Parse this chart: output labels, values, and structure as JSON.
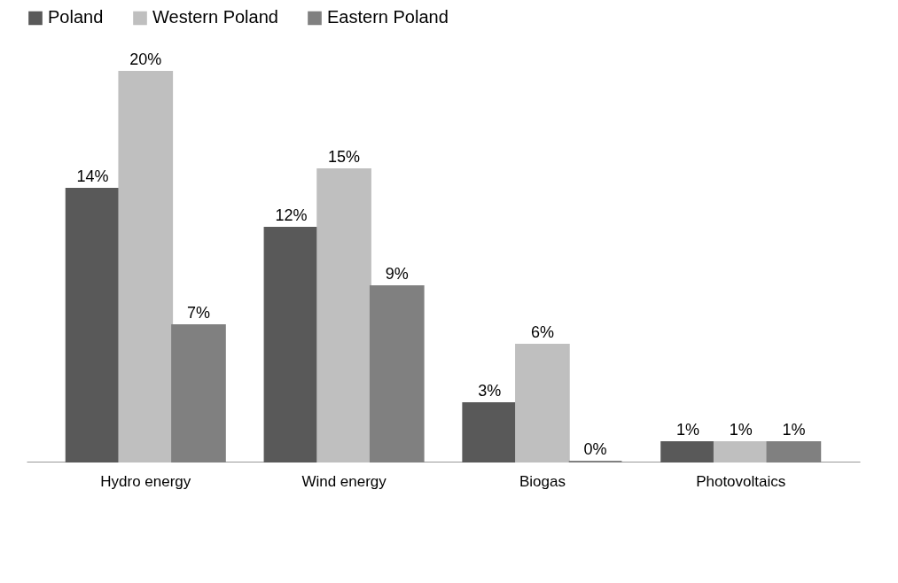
{
  "chart_data": {
    "type": "bar",
    "categories": [
      "Hydro energy",
      "Wind energy",
      "Biogas",
      "Photovoltaics"
    ],
    "series": [
      {
        "name": "Poland",
        "color": "#595959",
        "values": [
          14,
          12,
          3,
          1
        ],
        "value_labels": [
          "14%",
          "12%",
          "3%",
          "1%"
        ]
      },
      {
        "name": "Western Poland",
        "color": "#bfbfbf",
        "values": [
          20,
          15,
          6,
          1
        ],
        "value_labels": [
          "20%",
          "15%",
          "6%",
          "1%"
        ]
      },
      {
        "name": "Eastern Poland",
        "color": "#808080",
        "values": [
          7,
          9,
          0,
          1
        ],
        "value_labels": [
          "7%",
          "9%",
          "0%",
          "1%"
        ]
      }
    ],
    "legend": "top",
    "grid": false,
    "tick_labels": "x"
  }
}
